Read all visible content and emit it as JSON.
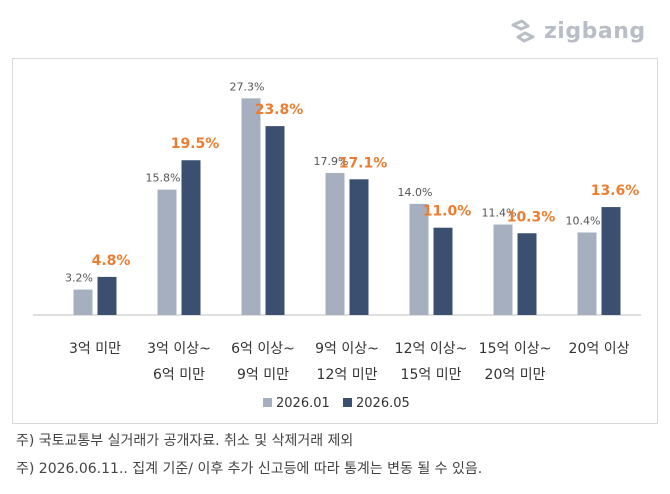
{
  "brand": {
    "name": "zigbang",
    "icon": "zigbang-logo-icon"
  },
  "colors": {
    "series_a": "#a5afc0",
    "series_b": "#3b4f70",
    "label_b": "#ed7d31",
    "axis": "#bfbfbf"
  },
  "chart_data": {
    "type": "bar",
    "title": "",
    "xlabel": "",
    "ylabel": "",
    "ylim": [
      0,
      30
    ],
    "grid": false,
    "legend": "bottom",
    "categories": [
      [
        "3억 미만"
      ],
      [
        "3억 이상~",
        "6억 미만"
      ],
      [
        "6억 이상~",
        "9억 미만"
      ],
      [
        "9억 이상~",
        "12억 미만"
      ],
      [
        "12억 이상~",
        "15억 미만"
      ],
      [
        "15억 이상~",
        "20억 미만"
      ],
      [
        "20억 이상"
      ]
    ],
    "series": [
      {
        "name": "2026.01",
        "values": [
          3.2,
          15.8,
          27.3,
          17.9,
          14.0,
          11.4,
          10.4
        ],
        "labels": [
          "3.2%",
          "15.8%",
          "27.3%",
          "17.9%",
          "14.0%",
          "11.4%",
          "10.4%"
        ]
      },
      {
        "name": "2026.05",
        "values": [
          4.8,
          19.5,
          23.8,
          17.1,
          11.0,
          10.3,
          13.6
        ],
        "labels": [
          "4.8%",
          "19.5%",
          "23.8%",
          "17.1%",
          "11.0%",
          "10.3%",
          "13.6%"
        ]
      }
    ]
  },
  "notes": {
    "note1": "주) 국토교통부 실거래가 공개자료. 취소 및 삭제거래 제외",
    "note2": "주) 2026.06.11.. 집계 기준/ 이후 추가 신고등에 따라 통계는 변동 될 수 있음."
  }
}
